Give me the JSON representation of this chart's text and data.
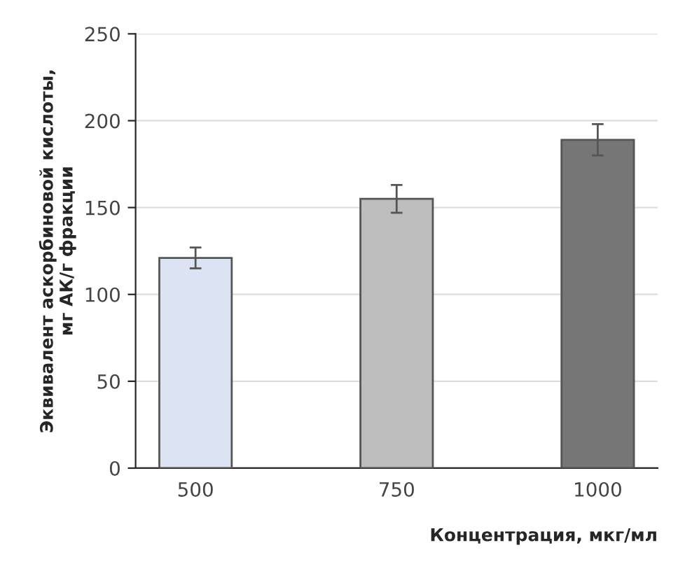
{
  "chart_data": {
    "type": "bar",
    "xlabel": "Концентрация, мкг/мл",
    "ylabel": "Эквивалент аскорбиновой кислоты,\nмг АК/г фракции",
    "categories": [
      "500",
      "750",
      "1000"
    ],
    "values": [
      121,
      155,
      189
    ],
    "errors": [
      6,
      8,
      9
    ],
    "colors": [
      "#dce3f2",
      "#bdbdbd",
      "#767676"
    ],
    "ylim": [
      0,
      250
    ],
    "yticks": [
      0,
      50,
      100,
      150,
      200,
      250
    ],
    "grid": "y"
  }
}
